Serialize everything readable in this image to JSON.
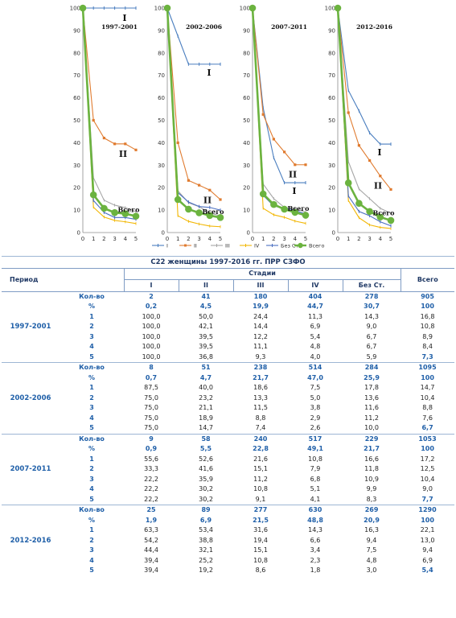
{
  "colors": {
    "I": "#4a7ebf",
    "II": "#e07b2f",
    "III": "#a6a6a6",
    "IV": "#f2b705",
    "bez": "#4a6fc1",
    "total": "#6bb33f",
    "header_text": "#1f3864",
    "accent_blue": "#1f5fa8"
  },
  "chart_data": [
    {
      "type": "line",
      "title": "1997-2001",
      "x": [
        0,
        1,
        2,
        3,
        4,
        5
      ],
      "ylim": [
        0,
        100
      ],
      "yticks": [
        0,
        10,
        20,
        30,
        40,
        50,
        60,
        70,
        80,
        90,
        100
      ],
      "series": [
        {
          "name": "I",
          "values": [
            100,
            100.0,
            100.0,
            100.0,
            100.0,
            100.0
          ]
        },
        {
          "name": "II",
          "values": [
            100,
            50.0,
            42.1,
            39.5,
            39.5,
            36.8
          ]
        },
        {
          "name": "III",
          "values": [
            100,
            24.4,
            14.4,
            12.2,
            11.1,
            9.3
          ]
        },
        {
          "name": "IV",
          "values": [
            100,
            11.3,
            6.9,
            5.4,
            4.8,
            4.0
          ]
        },
        {
          "name": "Без Ст",
          "values": [
            100,
            14.3,
            9.0,
            6.7,
            6.7,
            5.9
          ]
        },
        {
          "name": "Всего",
          "values": [
            100,
            16.8,
            10.8,
            8.9,
            8.4,
            7.3
          ]
        }
      ],
      "annotations": [
        "I",
        "II",
        "Всего"
      ]
    },
    {
      "type": "line",
      "title": "2002-2006",
      "x": [
        0,
        1,
        2,
        3,
        4,
        5
      ],
      "ylim": [
        0,
        100
      ],
      "yticks": [
        0,
        10,
        20,
        30,
        40,
        50,
        60,
        70,
        80,
        90,
        100
      ],
      "series": [
        {
          "name": "I",
          "values": [
            100,
            87.5,
            75.0,
            75.0,
            75.0,
            75.0
          ]
        },
        {
          "name": "II",
          "values": [
            100,
            40.0,
            23.2,
            21.1,
            18.9,
            14.7
          ]
        },
        {
          "name": "III",
          "values": [
            100,
            18.6,
            13.3,
            11.5,
            8.8,
            7.4
          ]
        },
        {
          "name": "IV",
          "values": [
            100,
            7.5,
            5.0,
            3.8,
            2.9,
            2.6
          ]
        },
        {
          "name": "Без Ст",
          "values": [
            100,
            17.8,
            13.6,
            11.6,
            11.2,
            10.0
          ]
        },
        {
          "name": "Всего",
          "values": [
            100,
            14.7,
            10.4,
            8.8,
            7.6,
            6.7
          ]
        }
      ],
      "annotations": [
        "I",
        "II",
        "Всего"
      ]
    },
    {
      "type": "line",
      "title": "2007-2011",
      "x": [
        0,
        1,
        2,
        3,
        4,
        5
      ],
      "ylim": [
        0,
        100
      ],
      "yticks": [
        0,
        10,
        20,
        30,
        40,
        50,
        60,
        70,
        80,
        90,
        100
      ],
      "series": [
        {
          "name": "I",
          "values": [
            100,
            55.6,
            33.3,
            22.2,
            22.2,
            22.2
          ]
        },
        {
          "name": "II",
          "values": [
            100,
            52.6,
            41.6,
            35.9,
            30.2,
            30.2
          ]
        },
        {
          "name": "III",
          "values": [
            100,
            21.6,
            15.1,
            11.2,
            10.8,
            9.1
          ]
        },
        {
          "name": "IV",
          "values": [
            100,
            10.8,
            7.9,
            6.8,
            5.1,
            4.1
          ]
        },
        {
          "name": "Без Ст",
          "values": [
            100,
            16.6,
            11.8,
            10.9,
            9.9,
            8.3
          ]
        },
        {
          "name": "Всего",
          "values": [
            100,
            17.2,
            12.5,
            10.4,
            9.0,
            7.7
          ]
        }
      ],
      "annotations": [
        "I",
        "II",
        "Всего"
      ]
    },
    {
      "type": "line",
      "title": "2012-2016",
      "x": [
        0,
        1,
        2,
        3,
        4,
        5
      ],
      "ylim": [
        0,
        100
      ],
      "yticks": [
        0,
        10,
        20,
        30,
        40,
        50,
        60,
        70,
        80,
        90,
        100
      ],
      "series": [
        {
          "name": "I",
          "values": [
            100,
            63.3,
            54.2,
            44.4,
            39.4,
            39.4
          ]
        },
        {
          "name": "II",
          "values": [
            100,
            53.4,
            38.8,
            32.1,
            25.2,
            19.2
          ]
        },
        {
          "name": "III",
          "values": [
            100,
            31.6,
            19.4,
            15.1,
            10.8,
            8.6
          ]
        },
        {
          "name": "IV",
          "values": [
            100,
            14.3,
            6.6,
            3.4,
            2.3,
            1.8
          ]
        },
        {
          "name": "Без Ст",
          "values": [
            100,
            16.3,
            9.4,
            7.5,
            4.8,
            3.0
          ]
        },
        {
          "name": "Всего",
          "values": [
            100,
            22.1,
            13.0,
            9.4,
            6.9,
            5.4
          ]
        }
      ],
      "annotations": [
        "I",
        "II",
        "Всего"
      ]
    }
  ],
  "legend": {
    "placement": "bottom",
    "items": [
      "I",
      "II",
      "III",
      "IV",
      "Без Ст",
      "Всего"
    ]
  },
  "table": {
    "caption": "С22 женщины 1997-2016 гг. ПРР СЗФО",
    "header_period": "Период",
    "header_stages": "Стадии",
    "header_total": "Всего",
    "stages": [
      "I",
      "II",
      "III",
      "IV",
      "Без Ст."
    ],
    "groups": [
      {
        "period": "1997-2001",
        "rows": [
          {
            "label": "Кол-во",
            "values": [
              "2",
              "41",
              "180",
              "404",
              "278"
            ],
            "total": "905"
          },
          {
            "label": "%",
            "values": [
              "0,2",
              "4,5",
              "19,9",
              "44,7",
              "30,7"
            ],
            "total": "100"
          },
          {
            "label": "1",
            "values": [
              "100,0",
              "50,0",
              "24,4",
              "11,3",
              "14,3"
            ],
            "total": "16,8"
          },
          {
            "label": "2",
            "values": [
              "100,0",
              "42,1",
              "14,4",
              "6,9",
              "9,0"
            ],
            "total": "10,8"
          },
          {
            "label": "3",
            "values": [
              "100,0",
              "39,5",
              "12,2",
              "5,4",
              "6,7"
            ],
            "total": "8,9"
          },
          {
            "label": "4",
            "values": [
              "100,0",
              "39,5",
              "11,1",
              "4,8",
              "6,7"
            ],
            "total": "8,4"
          },
          {
            "label": "5",
            "values": [
              "100,0",
              "36,8",
              "9,3",
              "4,0",
              "5,9"
            ],
            "total": "7,3"
          }
        ]
      },
      {
        "period": "2002-2006",
        "rows": [
          {
            "label": "Кол-во",
            "values": [
              "8",
              "51",
              "238",
              "514",
              "284"
            ],
            "total": "1095"
          },
          {
            "label": "%",
            "values": [
              "0,7",
              "4,7",
              "21,7",
              "47,0",
              "25,9"
            ],
            "total": "100"
          },
          {
            "label": "1",
            "values": [
              "87,5",
              "40,0",
              "18,6",
              "7,5",
              "17,8"
            ],
            "total": "14,7"
          },
          {
            "label": "2",
            "values": [
              "75,0",
              "23,2",
              "13,3",
              "5,0",
              "13,6"
            ],
            "total": "10,4"
          },
          {
            "label": "3",
            "values": [
              "75,0",
              "21,1",
              "11,5",
              "3,8",
              "11,6"
            ],
            "total": "8,8"
          },
          {
            "label": "4",
            "values": [
              "75,0",
              "18,9",
              "8,8",
              "2,9",
              "11,2"
            ],
            "total": "7,6"
          },
          {
            "label": "5",
            "values": [
              "75,0",
              "14,7",
              "7,4",
              "2,6",
              "10,0"
            ],
            "total": "6,7"
          }
        ]
      },
      {
        "period": "2007-2011",
        "rows": [
          {
            "label": "Кол-во",
            "values": [
              "9",
              "58",
              "240",
              "517",
              "229"
            ],
            "total": "1053"
          },
          {
            "label": "%",
            "values": [
              "0,9",
              "5,5",
              "22,8",
              "49,1",
              "21,7"
            ],
            "total": "100"
          },
          {
            "label": "1",
            "values": [
              "55,6",
              "52,6",
              "21,6",
              "10,8",
              "16,6"
            ],
            "total": "17,2"
          },
          {
            "label": "2",
            "values": [
              "33,3",
              "41,6",
              "15,1",
              "7,9",
              "11,8"
            ],
            "total": "12,5"
          },
          {
            "label": "3",
            "values": [
              "22,2",
              "35,9",
              "11,2",
              "6,8",
              "10,9"
            ],
            "total": "10,4"
          },
          {
            "label": "4",
            "values": [
              "22,2",
              "30,2",
              "10,8",
              "5,1",
              "9,9"
            ],
            "total": "9,0"
          },
          {
            "label": "5",
            "values": [
              "22,2",
              "30,2",
              "9,1",
              "4,1",
              "8,3"
            ],
            "total": "7,7"
          }
        ]
      },
      {
        "period": "2012-2016",
        "rows": [
          {
            "label": "Кол-во",
            "values": [
              "25",
              "89",
              "277",
              "630",
              "269"
            ],
            "total": "1290"
          },
          {
            "label": "%",
            "values": [
              "1,9",
              "6,9",
              "21,5",
              "48,8",
              "20,9"
            ],
            "total": "100"
          },
          {
            "label": "1",
            "values": [
              "63,3",
              "53,4",
              "31,6",
              "14,3",
              "16,3"
            ],
            "total": "22,1"
          },
          {
            "label": "2",
            "values": [
              "54,2",
              "38,8",
              "19,4",
              "6,6",
              "9,4"
            ],
            "total": "13,0"
          },
          {
            "label": "3",
            "values": [
              "44,4",
              "32,1",
              "15,1",
              "3,4",
              "7,5"
            ],
            "total": "9,4"
          },
          {
            "label": "4",
            "values": [
              "39,4",
              "25,2",
              "10,8",
              "2,3",
              "4,8"
            ],
            "total": "6,9"
          },
          {
            "label": "5",
            "values": [
              "39,4",
              "19,2",
              "8,6",
              "1,8",
              "3,0"
            ],
            "total": "5,4"
          }
        ]
      }
    ]
  }
}
